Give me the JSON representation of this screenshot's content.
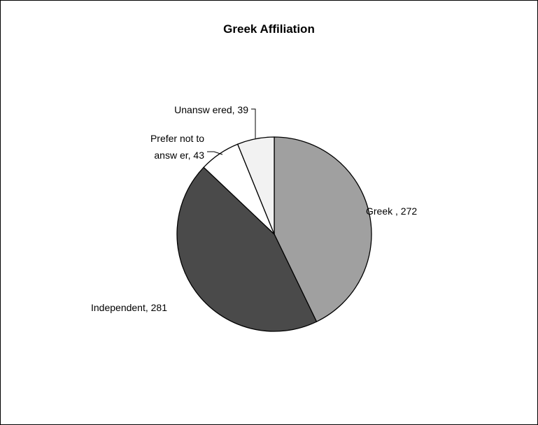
{
  "chart_data": {
    "type": "pie",
    "title": "Greek Affiliation",
    "slices": [
      {
        "label": "Greek",
        "value": 272,
        "color": "#a0a0a0",
        "text_lines": [
          "Greek , 272"
        ]
      },
      {
        "label": "Independent",
        "value": 281,
        "color": "#4a4a4a",
        "text_lines": [
          "Independent, 281"
        ]
      },
      {
        "label": "Prefer not to answer",
        "value": 43,
        "color": "#ffffff",
        "text_lines": [
          "Prefer not to",
          "answ er, 43"
        ]
      },
      {
        "label": "Unanswered",
        "value": 39,
        "color": "#f2f2f2",
        "text_lines": [
          "Unansw ered, 39"
        ]
      }
    ],
    "start_angle": "12 o'clock",
    "direction": "clockwise",
    "legend": "none",
    "data_labels": "category, value"
  }
}
